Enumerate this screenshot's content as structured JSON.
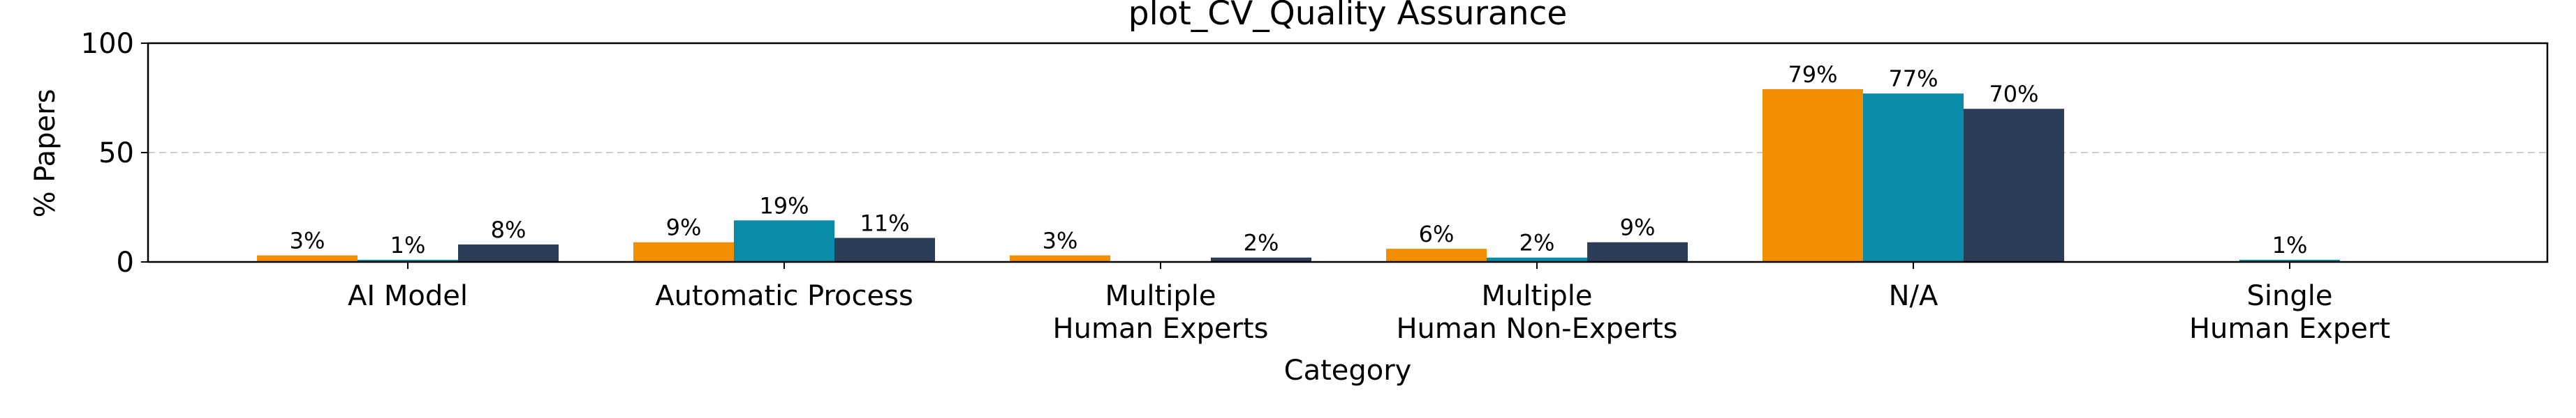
{
  "chart_data": {
    "type": "bar",
    "title": "plot_CV_Quality Assurance",
    "xlabel": "Category",
    "ylabel": "% Papers",
    "ylim": [
      0,
      100
    ],
    "yticks": [
      "0",
      "50",
      "100"
    ],
    "grid": "horizontal dashed at 50",
    "categories": [
      [
        "AI Model"
      ],
      [
        "Automatic Process"
      ],
      [
        "Multiple",
        "Human Experts"
      ],
      [
        "Multiple",
        "Human Non-Experts"
      ],
      [
        "N/A"
      ],
      [
        "Single",
        "Human Expert"
      ]
    ],
    "series": [
      {
        "color": "#F28E00",
        "values": [
          3,
          9,
          3,
          6,
          79,
          0
        ],
        "labels": [
          "3%",
          "9%",
          "3%",
          "6%",
          "79%",
          ""
        ]
      },
      {
        "color": "#0A8BA8",
        "values": [
          1,
          19,
          0,
          2,
          77,
          1
        ],
        "labels": [
          "1%",
          "19%",
          "",
          "2%",
          "77%",
          "1%"
        ]
      },
      {
        "color": "#2C3E57",
        "values": [
          8,
          11,
          2,
          9,
          70,
          0
        ],
        "labels": [
          "8%",
          "11%",
          "2%",
          "9%",
          "70%",
          ""
        ]
      }
    ]
  }
}
